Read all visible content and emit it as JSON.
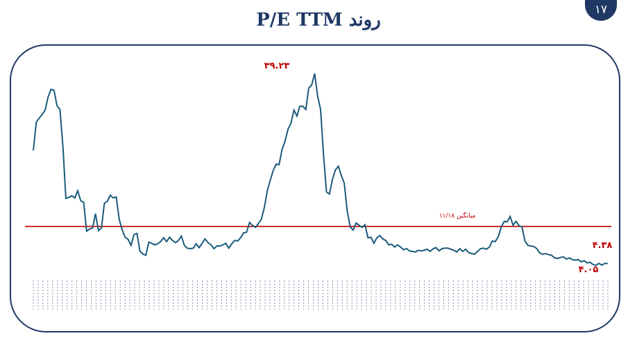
{
  "page_number": "۱۷",
  "title": "روند P/E TTM",
  "colors": {
    "series": "#1a5a7a",
    "average": "#c00000",
    "accent": "#1f3864",
    "label": "#c00000"
  },
  "chart_data": {
    "type": "line",
    "title": "روند P/E TTM",
    "xlabel": "",
    "ylabel": "",
    "ylim": [
      0,
      42
    ],
    "average": {
      "value": 11.18,
      "label": "میانگین ۱۱/۱۸"
    },
    "annotations": {
      "max_label": "۳۹.۲۳",
      "last_label": "۴.۳۸",
      "min_label": "۴.۰۵"
    },
    "points": [
      [
        0,
        25.1
      ],
      [
        1,
        30.3
      ],
      [
        2,
        31
      ],
      [
        3,
        31.7
      ],
      [
        4,
        32.5
      ],
      [
        5,
        34.9
      ],
      [
        6,
        36.3
      ],
      [
        7,
        36.1
      ],
      [
        8,
        33.3
      ],
      [
        9,
        32.6
      ],
      [
        10,
        25.8
      ],
      [
        11,
        16.3
      ],
      [
        12,
        16.5
      ],
      [
        13,
        16.8
      ],
      [
        14,
        16.4
      ],
      [
        15,
        17.7
      ],
      [
        16,
        15.9
      ],
      [
        17,
        15.6
      ],
      [
        18,
        10.3
      ],
      [
        19,
        10.7
      ],
      [
        20,
        10.9
      ],
      [
        21,
        13.5
      ],
      [
        22,
        10.4
      ],
      [
        23,
        10.9
      ],
      [
        24,
        15.4
      ],
      [
        25,
        15.8
      ],
      [
        26,
        16.9
      ],
      [
        27,
        16.4
      ],
      [
        28,
        16.6
      ],
      [
        29,
        12.5
      ],
      [
        30,
        10.6
      ],
      [
        31,
        9.2
      ],
      [
        32,
        8.8
      ],
      [
        33,
        7.7
      ],
      [
        34,
        9.7
      ],
      [
        35,
        9.9
      ],
      [
        36,
        6.7
      ],
      [
        37,
        6.1
      ],
      [
        38,
        5.9
      ],
      [
        39,
        8.3
      ],
      [
        40,
        8.1
      ],
      [
        41,
        7.8
      ],
      [
        42,
        8.0
      ],
      [
        43,
        8.4
      ],
      [
        44,
        9.1
      ],
      [
        45,
        8.4
      ],
      [
        46,
        9.2
      ],
      [
        47,
        8.6
      ],
      [
        48,
        8.2
      ],
      [
        49,
        8.6
      ],
      [
        50,
        9.4
      ],
      [
        51,
        7.7
      ],
      [
        52,
        7.2
      ],
      [
        53,
        7.1
      ],
      [
        54,
        7.2
      ],
      [
        55,
        8.0
      ],
      [
        56,
        7.3
      ],
      [
        57,
        8.1
      ],
      [
        58,
        8.9
      ],
      [
        59,
        8.2
      ],
      [
        60,
        7.8
      ],
      [
        61,
        7.1
      ],
      [
        62,
        7.6
      ],
      [
        63,
        7.6
      ],
      [
        64,
        7.8
      ],
      [
        65,
        8.1
      ],
      [
        66,
        7.2
      ],
      [
        67,
        8.0
      ],
      [
        68,
        8.6
      ],
      [
        69,
        8.5
      ],
      [
        70,
        9.1
      ],
      [
        71,
        10.0
      ],
      [
        72,
        10.1
      ],
      [
        73,
        11.9
      ],
      [
        74,
        11.4
      ],
      [
        75,
        11.0
      ],
      [
        76,
        11.7
      ],
      [
        77,
        12.5
      ],
      [
        78,
        14.6
      ],
      [
        79,
        17.7
      ],
      [
        80,
        19.6
      ],
      [
        81,
        21.4
      ],
      [
        82,
        22.6
      ],
      [
        83,
        22.5
      ],
      [
        84,
        25.3
      ],
      [
        85,
        26.8
      ],
      [
        86,
        29.0
      ],
      [
        87,
        30.1
      ],
      [
        88,
        32.5
      ],
      [
        89,
        31.4
      ],
      [
        90,
        33.2
      ],
      [
        91,
        33.2
      ],
      [
        92,
        32.6
      ],
      [
        93,
        36.5
      ],
      [
        94,
        37.1
      ],
      [
        95,
        39.2
      ],
      [
        96,
        35.1
      ],
      [
        97,
        32.6
      ],
      [
        98,
        24.2
      ],
      [
        99,
        17.5
      ],
      [
        100,
        17.1
      ],
      [
        101,
        19.8
      ],
      [
        102,
        21.5
      ],
      [
        103,
        22.2
      ],
      [
        104,
        20.5
      ],
      [
        105,
        19.1
      ],
      [
        106,
        14.0
      ],
      [
        107,
        11.1
      ],
      [
        108,
        10.5
      ],
      [
        109,
        11.8
      ],
      [
        110,
        11.4
      ],
      [
        111,
        11.0
      ],
      [
        112,
        11.5
      ],
      [
        113,
        9.1
      ],
      [
        114,
        9.2
      ],
      [
        115,
        8.1
      ],
      [
        116,
        9.1
      ],
      [
        117,
        9.5
      ],
      [
        118,
        8.9
      ],
      [
        119,
        8.6
      ],
      [
        120,
        7.8
      ],
      [
        121,
        7.9
      ],
      [
        122,
        7.4
      ],
      [
        123,
        7.8
      ],
      [
        124,
        7.4
      ],
      [
        125,
        6.9
      ],
      [
        126,
        7.1
      ],
      [
        127,
        6.7
      ],
      [
        128,
        6.6
      ],
      [
        129,
        6.5
      ],
      [
        130,
        6.8
      ],
      [
        131,
        6.7
      ],
      [
        132,
        6.8
      ],
      [
        133,
        7.0
      ],
      [
        134,
        6.6
      ],
      [
        135,
        7.1
      ],
      [
        136,
        7.3
      ],
      [
        137,
        6.7
      ],
      [
        138,
        7.1
      ],
      [
        139,
        7.2
      ],
      [
        140,
        7.2
      ],
      [
        141,
        7.0
      ],
      [
        142,
        6.8
      ],
      [
        143,
        6.5
      ],
      [
        144,
        7.1
      ],
      [
        145,
        6.6
      ],
      [
        146,
        7.0
      ],
      [
        147,
        6.4
      ],
      [
        148,
        6.2
      ],
      [
        149,
        6.1
      ],
      [
        150,
        6.6
      ],
      [
        151,
        7.1
      ],
      [
        152,
        7.2
      ],
      [
        153,
        7.0
      ],
      [
        154,
        7.4
      ],
      [
        155,
        8.5
      ],
      [
        156,
        8.4
      ],
      [
        157,
        9.3
      ],
      [
        158,
        11.1
      ],
      [
        159,
        12.1
      ],
      [
        160,
        12.0
      ],
      [
        161,
        13.0
      ],
      [
        162,
        11.4
      ],
      [
        163,
        12.1
      ],
      [
        164,
        11.3
      ],
      [
        165,
        11.1
      ],
      [
        166,
        8.5
      ],
      [
        167,
        7.7
      ],
      [
        168,
        7.6
      ],
      [
        169,
        7.5
      ],
      [
        170,
        7.1
      ],
      [
        171,
        6.3
      ],
      [
        172,
        6.1
      ],
      [
        173,
        6.2
      ],
      [
        174,
        6.0
      ],
      [
        175,
        5.9
      ],
      [
        176,
        5.4
      ],
      [
        177,
        5.3
      ],
      [
        178,
        5.5
      ],
      [
        179,
        5.6
      ],
      [
        180,
        5.2
      ],
      [
        181,
        5.4
      ],
      [
        182,
        5.1
      ],
      [
        183,
        5.0
      ],
      [
        184,
        5.1
      ],
      [
        185,
        4.7
      ],
      [
        186,
        4.9
      ],
      [
        187,
        4.5
      ],
      [
        188,
        4.6
      ],
      [
        189,
        4.2
      ],
      [
        190,
        4.05
      ],
      [
        191,
        4.4
      ],
      [
        192,
        4.1
      ],
      [
        193,
        4.4
      ],
      [
        194,
        4.38
      ]
    ]
  }
}
